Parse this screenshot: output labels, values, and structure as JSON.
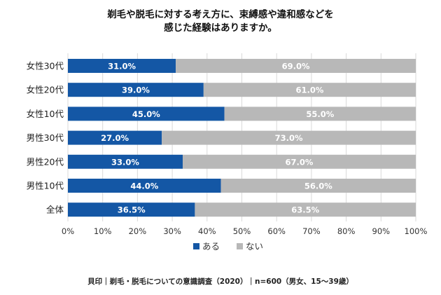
{
  "title_lines": [
    "剃毛や脱毛に対する考え方に、束縛感や違和感などを",
    "感じた経験はありますか。"
  ],
  "source": "貝印｜剃毛・脱毛についての意識調査（2020）｜n=600（男女、15〜39歳）",
  "colors": {
    "aru": "#1457a5",
    "nai": "#b8b8b8",
    "label": "#ffffff",
    "grid": "#d9d9d9"
  },
  "chart_data": {
    "type": "bar",
    "orientation": "horizontal",
    "stacked": "percent",
    "categories": [
      "女性30代",
      "女性20代",
      "女性10代",
      "男性30代",
      "男性20代",
      "男性10代",
      "全体"
    ],
    "series": [
      {
        "name": "ある",
        "values": [
          31.0,
          39.0,
          45.0,
          27.0,
          33.0,
          44.0,
          36.5
        ],
        "color": "#1457a5"
      },
      {
        "name": "ない",
        "values": [
          69.0,
          61.0,
          55.0,
          73.0,
          67.0,
          56.0,
          63.5
        ],
        "color": "#b8b8b8"
      }
    ],
    "data_labels": [
      [
        "31.0%",
        "39.0%",
        "45.0%",
        "27.0%",
        "33.0%",
        "44.0%",
        "36.5%"
      ],
      [
        "69.0%",
        "61.0%",
        "55.0%",
        "73.0%",
        "67.0%",
        "56.0%",
        "63.5%"
      ]
    ],
    "x_ticks": [
      "0%",
      "10%",
      "20%",
      "30%",
      "40%",
      "50%",
      "60%",
      "70%",
      "80%",
      "90%",
      "100%"
    ],
    "xlim": [
      0,
      100
    ],
    "grid": true,
    "legend_position": "bottom"
  }
}
